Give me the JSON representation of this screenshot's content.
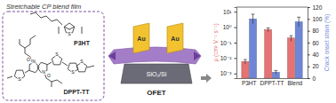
{
  "chart_data": {
    "type": "bar",
    "categories": [
      "P3HT",
      "DPPT-TT",
      "Blend"
    ],
    "ylabel": "μ (cm² V⁻¹ s⁻¹)",
    "y2label": "Crack onset strain (%)",
    "log": "y",
    "ylim": [
      0.0005,
      20
    ],
    "yticks": [
      {
        "value": 0.001,
        "label": "10⁻³"
      },
      {
        "value": 0.01,
        "label": "10⁻²"
      },
      {
        "value": 0.1,
        "label": "10⁻¹"
      },
      {
        "value": 1,
        "label": "10⁰"
      },
      {
        "value": 10,
        "label": "10¹"
      }
    ],
    "y2lim": [
      0,
      120
    ],
    "y2ticks": [
      0,
      20,
      40,
      60,
      80,
      100,
      120
    ],
    "series": [
      {
        "color": "#e57373",
        "values": [
          0.006,
          0.7,
          0.2
        ],
        "errors": [
          0.002,
          0.2,
          0.08
        ]
      },
      {
        "color": "#6f86d6",
        "axis": "y2",
        "values": [
          100,
          10,
          95
        ],
        "errors": [
          8,
          3,
          8
        ]
      }
    ]
  },
  "diagram": {
    "film_label": "Stretchable CP blend film",
    "polymers": [
      "P3HT",
      "DPPT-TT"
    ],
    "p3ht_atoms": [
      "S"
    ],
    "dpptt_atoms": [
      "O",
      "N",
      "N",
      "O",
      "S",
      "S",
      "S",
      "S"
    ],
    "electrodes": [
      "Au",
      "Au"
    ],
    "substrate": "SiO₂/Si",
    "device": "OFET"
  }
}
